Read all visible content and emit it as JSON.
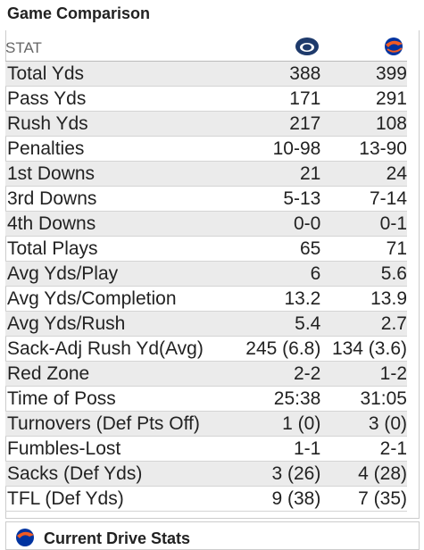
{
  "header": {
    "title": "Game Comparison"
  },
  "table": {
    "header": "STAT",
    "rows": [
      [
        "Total Yds",
        "388",
        "399"
      ],
      [
        "Pass Yds",
        "171",
        "291"
      ],
      [
        "Rush Yds",
        "217",
        "108"
      ],
      [
        "Penalties",
        "10-98",
        "13-90"
      ],
      [
        "1st Downs",
        "21",
        "24"
      ],
      [
        "3rd Downs",
        "5-13",
        "7-14"
      ],
      [
        "4th Downs",
        "0-0",
        "0-1"
      ],
      [
        "Total Plays",
        "65",
        "71"
      ],
      [
        "Avg Yds/Play",
        "6",
        "5.6"
      ],
      [
        "Avg Yds/Completion",
        "13.2",
        "13.9"
      ],
      [
        "Avg Yds/Rush",
        "5.4",
        "2.7"
      ],
      [
        "Sack-Adj Rush Yd(Avg)",
        "245 (6.8)",
        "134 (3.6)"
      ],
      [
        "Red Zone",
        "2-2",
        "1-2"
      ],
      [
        "Time of Poss",
        "25:38",
        "31:05"
      ],
      [
        "Turnovers (Def Pts Off)",
        "1 (0)",
        "3 (0)"
      ],
      [
        "Fumbles-Lost",
        "1-1",
        "2-1"
      ],
      [
        "Sacks (Def Yds)",
        "3 (26)",
        "4 (28)"
      ],
      [
        "TFL (Def Yds)",
        "9 (38)",
        "7 (35)"
      ]
    ]
  },
  "footer": {
    "title": "Current Drive Stats"
  }
}
